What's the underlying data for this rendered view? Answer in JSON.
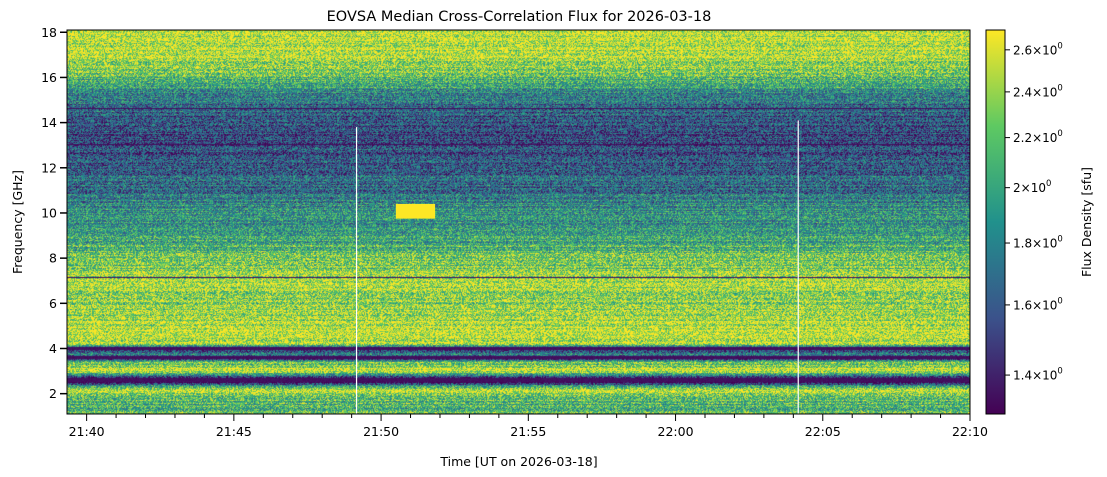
{
  "chart_data": {
    "type": "heatmap",
    "title": "EOVSA Median Cross-Correlation Flux for 2026-03-18",
    "xlabel": "Time [UT on 2026-03-18]",
    "ylabel": "Frequency [GHz]",
    "colorbar_label": "Flux Density [sfu]",
    "colormap": "viridis",
    "colormap_stops": [
      "#440154",
      "#3b528b",
      "#21918c",
      "#5ec962",
      "#fde725"
    ],
    "x_start": "21:39:20",
    "x_end": "22:10:00",
    "xlim": [
      "21:39:20",
      "22:10:00"
    ],
    "ylim": [
      1.1,
      18.1
    ],
    "x_ticks": [
      "21:40",
      "21:45",
      "21:50",
      "21:55",
      "22:00",
      "22:05",
      "22:10"
    ],
    "y_ticks": [
      2,
      4,
      6,
      8,
      10,
      12,
      14,
      16,
      18
    ],
    "colorbar": {
      "scale": "log",
      "range": [
        1.3,
        2.7
      ],
      "ticks": [
        {
          "mantissa": "1.4",
          "value": 1.4
        },
        {
          "mantissa": "1.6",
          "value": 1.6
        },
        {
          "mantissa": "1.8",
          "value": 1.8
        },
        {
          "mantissa": "2",
          "value": 2.0
        },
        {
          "mantissa": "2.2",
          "value": 2.2
        },
        {
          "mantissa": "2.4",
          "value": 2.4
        },
        {
          "mantissa": "2.6",
          "value": 2.6
        }
      ]
    },
    "frequency_profile": [
      {
        "freq": 1.1,
        "level": 0.7
      },
      {
        "freq": 1.6,
        "level": 0.65
      },
      {
        "freq": 2.2,
        "level": 0.95
      },
      {
        "freq": 2.5,
        "level": 0.0
      },
      {
        "freq": 2.7,
        "level": 0.0
      },
      {
        "freq": 3.0,
        "level": 0.98
      },
      {
        "freq": 3.4,
        "level": 0.7
      },
      {
        "freq": 3.55,
        "level": 0.05
      },
      {
        "freq": 3.75,
        "level": 0.4
      },
      {
        "freq": 3.95,
        "level": 0.05
      },
      {
        "freq": 4.2,
        "level": 0.92
      },
      {
        "freq": 5.0,
        "level": 0.88
      },
      {
        "freq": 6.0,
        "level": 0.82
      },
      {
        "freq": 7.0,
        "level": 0.86
      },
      {
        "freq": 8.0,
        "level": 0.72
      },
      {
        "freq": 9.0,
        "level": 0.55
      },
      {
        "freq": 10.0,
        "level": 0.5
      },
      {
        "freq": 11.0,
        "level": 0.38
      },
      {
        "freq": 12.0,
        "level": 0.3
      },
      {
        "freq": 13.0,
        "level": 0.22
      },
      {
        "freq": 14.0,
        "level": 0.25
      },
      {
        "freq": 15.0,
        "level": 0.4
      },
      {
        "freq": 16.0,
        "level": 0.7
      },
      {
        "freq": 17.0,
        "level": 0.9
      },
      {
        "freq": 18.1,
        "level": 0.88
      }
    ],
    "dark_bands_ghz": [
      [
        2.5,
        2.7
      ],
      [
        3.55,
        3.65
      ],
      [
        3.95,
        4.05
      ],
      [
        7.1,
        7.15
      ],
      [
        13.0,
        13.05
      ],
      [
        14.6,
        14.65
      ]
    ],
    "data_gaps": [
      {
        "time": "21:49:10",
        "freq_range": [
          1.1,
          13.8
        ]
      },
      {
        "time": "22:04:10",
        "freq_range": [
          1.1,
          14.1
        ]
      }
    ],
    "bright_patches": [
      {
        "time_range": [
          "21:50:30",
          "21:51:50"
        ],
        "freq_range": [
          9.75,
          10.4
        ],
        "level": 1.0
      }
    ]
  }
}
